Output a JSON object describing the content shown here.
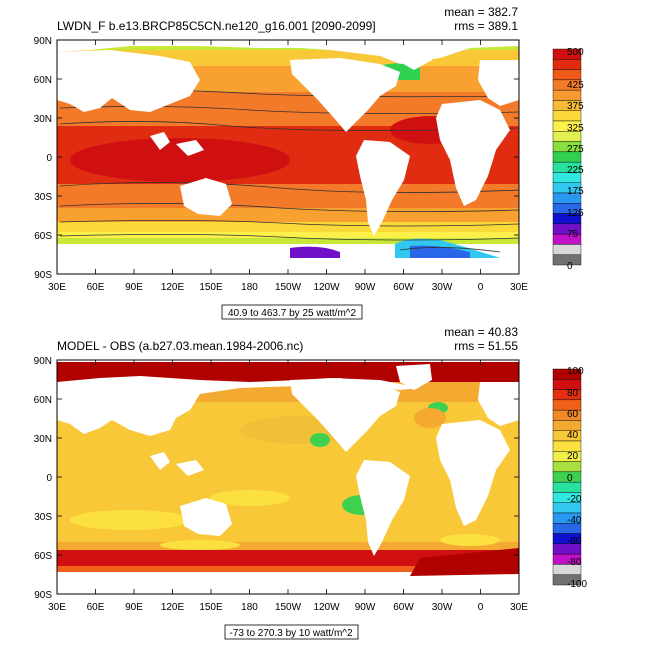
{
  "panels": [
    {
      "title": "LWDN_F b.e13.BRCP85C5CN.ne120_g16.001 [2090-2099]",
      "mean_text": "mean = 382.7",
      "rms_text": "rms = 389.1",
      "range_text": "40.9 to 463.7 by 25 watt/m^2",
      "colorbar_labels": [
        "500",
        "425",
        "375",
        "325",
        "275",
        "225",
        "175",
        "125",
        "75",
        "0"
      ],
      "colors": [
        "#d01010",
        "#e22a10",
        "#f05a18",
        "#f27a28",
        "#f59a30",
        "#f8bb38",
        "#fbd93a",
        "#fcf04a",
        "#e0f050",
        "#88e040",
        "#30d050",
        "#28e0a0",
        "#30e8e0",
        "#30c8f0",
        "#2898f0",
        "#2868e8",
        "#1010d0",
        "#7010c8",
        "#c010c8",
        "#d8d8d8",
        "#707070"
      ]
    },
    {
      "title": "MODEL - OBS (a.b27.03.mean.1984-2006.nc)",
      "mean_text": "mean = 40.83",
      "rms_text": "rms = 51.55",
      "range_text": "-73 to 270.3 by 10 watt/m^2",
      "colorbar_labels": [
        "100",
        "80",
        "60",
        "40",
        "20",
        "0",
        "-20",
        "-40",
        "-60",
        "-80",
        "-100"
      ],
      "colors": [
        "#b00000",
        "#d01010",
        "#e33010",
        "#f06018",
        "#f08a28",
        "#f4aa30",
        "#f8c838",
        "#fbe040",
        "#f0f048",
        "#a8e040",
        "#40d050",
        "#28e0a0",
        "#30e8e0",
        "#30c8f0",
        "#2898f0",
        "#2868e8",
        "#1010d0",
        "#7010c8",
        "#c010c8",
        "#d8d8d8",
        "#707070"
      ]
    }
  ],
  "lat_labels": [
    "90N",
    "60N",
    "30N",
    "0",
    "30S",
    "60S",
    "90S"
  ],
  "lon_labels": [
    "30E",
    "60E",
    "90E",
    "120E",
    "150E",
    "180",
    "150W",
    "120W",
    "90W",
    "60W",
    "30W",
    "0",
    "30E"
  ]
}
